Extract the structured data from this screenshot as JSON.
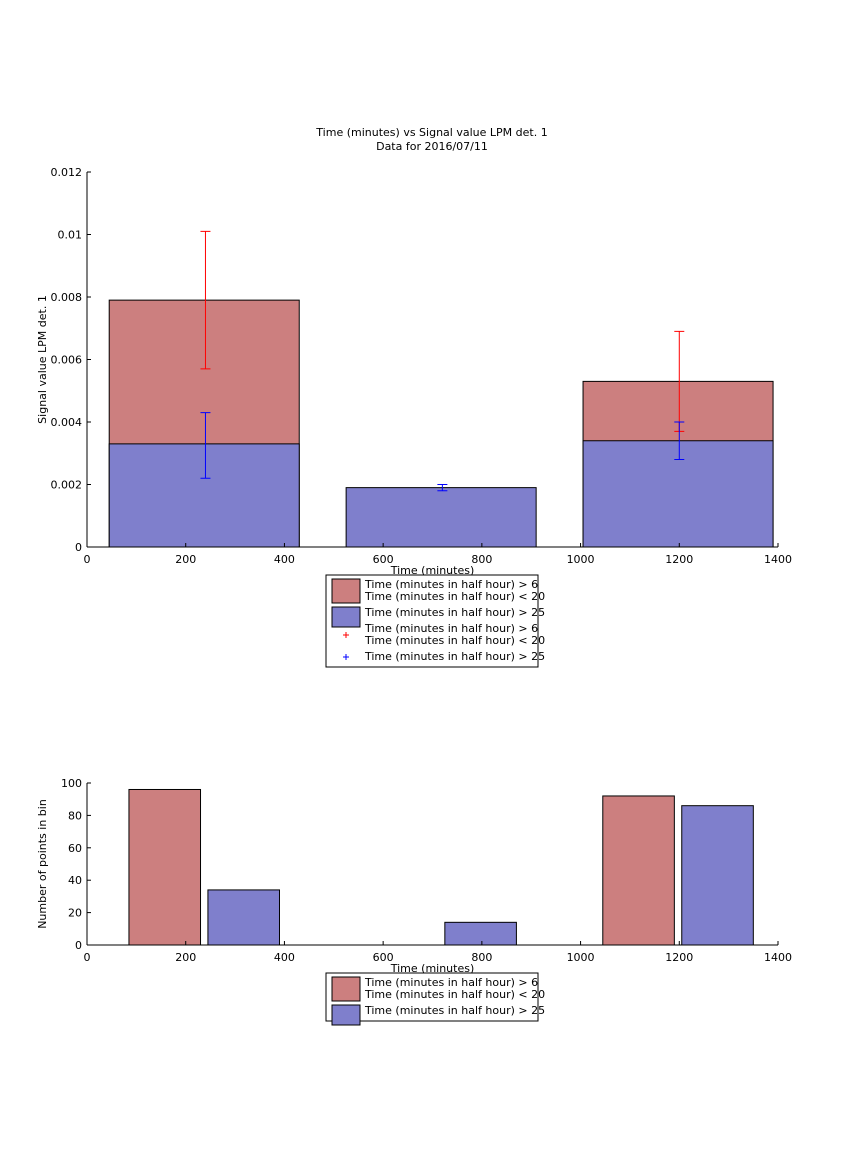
{
  "chart_data": [
    {
      "type": "bar",
      "title": "Time (minutes) vs Signal value LPM det. 1",
      "subtitle": "Data for 2016/07/11",
      "xlabel": "Time (minutes)",
      "ylabel": "Signal value LPM det. 1",
      "xlim": [
        0,
        1400
      ],
      "ylim": [
        0,
        0.012
      ],
      "xticks": [
        0,
        200,
        400,
        600,
        800,
        1000,
        1200,
        1400
      ],
      "xtick_labels": [
        "0",
        "200",
        "400",
        "600",
        "800",
        "1000",
        "1200",
        "1400"
      ],
      "yticks": [
        0,
        0.002,
        0.004,
        0.006,
        0.008,
        0.01,
        0.012
      ],
      "ytick_labels": [
        "0",
        "0.002",
        "0.004",
        "0.006",
        "0.008",
        "0.01",
        "0.012"
      ],
      "legend_position": "below",
      "bars": [
        {
          "series": 0,
          "x0": 45,
          "x1": 430,
          "value": 0.0079
        },
        {
          "series": 0,
          "x0": 1005,
          "x1": 1390,
          "value": 0.0053
        },
        {
          "series": 1,
          "x0": 45,
          "x1": 430,
          "value": 0.0033
        },
        {
          "series": 1,
          "x0": 525,
          "x1": 910,
          "value": 0.0019
        },
        {
          "series": 1,
          "x0": 1005,
          "x1": 1390,
          "value": 0.0034
        }
      ],
      "errorbars": [
        {
          "series": 0,
          "x": 240,
          "y": 0.0079,
          "low": 0.0057,
          "high": 0.0101
        },
        {
          "series": 0,
          "x": 1200,
          "y": 0.0053,
          "low": 0.0037,
          "high": 0.0069
        },
        {
          "series": 1,
          "x": 240,
          "y": 0.0033,
          "low": 0.0022,
          "high": 0.0043
        },
        {
          "series": 1,
          "x": 720,
          "y": 0.0019,
          "low": 0.0018,
          "high": 0.002
        },
        {
          "series": 1,
          "x": 1200,
          "y": 0.0034,
          "low": 0.0028,
          "high": 0.004
        }
      ],
      "legend": [
        {
          "kind": "patch",
          "color": "#cc7f7f",
          "lines": [
            "Time (minutes in half hour) > 6",
            "Time (minutes in half hour) < 20"
          ]
        },
        {
          "kind": "patch",
          "color": "#7f7fcc",
          "lines": [
            "Time (minutes in half hour) > 25"
          ]
        },
        {
          "kind": "marker",
          "color": "#ff0000",
          "lines": [
            "Time (minutes in half hour) > 6",
            "Time (minutes in half hour) < 20"
          ]
        },
        {
          "kind": "marker",
          "color": "#0000ff",
          "lines": [
            "Time (minutes in half hour) > 25"
          ]
        }
      ],
      "series": [
        {
          "name": "Time (minutes in half hour) > 6 Time (minutes in half hour) < 20",
          "color": "#cc7f7f",
          "error_color": "#ff0000"
        },
        {
          "name": "Time (minutes in half hour) > 25",
          "color": "#7f7fcc",
          "error_color": "#0000ff"
        }
      ]
    },
    {
      "type": "bar",
      "title": "",
      "xlabel": "Time (minutes)",
      "ylabel": "Number of points in bin",
      "xlim": [
        0,
        1400
      ],
      "ylim": [
        0,
        100
      ],
      "xticks": [
        0,
        200,
        400,
        600,
        800,
        1000,
        1200,
        1400
      ],
      "xtick_labels": [
        "0",
        "200",
        "400",
        "600",
        "800",
        "1000",
        "1200",
        "1400"
      ],
      "yticks": [
        0,
        20,
        40,
        60,
        80,
        100
      ],
      "ytick_labels": [
        "0",
        "20",
        "40",
        "60",
        "80",
        "100"
      ],
      "legend_position": "below",
      "bars": [
        {
          "series": 0,
          "x0": 85,
          "x1": 230,
          "value": 96
        },
        {
          "series": 1,
          "x0": 245,
          "x1": 390,
          "value": 34
        },
        {
          "series": 1,
          "x0": 725,
          "x1": 870,
          "value": 14
        },
        {
          "series": 0,
          "x0": 1045,
          "x1": 1190,
          "value": 92
        },
        {
          "series": 1,
          "x0": 1205,
          "x1": 1350,
          "value": 86
        }
      ],
      "legend": [
        {
          "kind": "patch",
          "color": "#cc7f7f",
          "lines": [
            "Time (minutes in half hour) > 6",
            "Time (minutes in half hour) < 20"
          ]
        },
        {
          "kind": "patch",
          "color": "#7f7fcc",
          "lines": [
            "Time (minutes in half hour) > 25"
          ]
        }
      ],
      "series": [
        {
          "name": "Time (minutes in half hour) > 6 Time (minutes in half hour) < 20",
          "color": "#cc7f7f"
        },
        {
          "name": "Time (minutes in half hour) > 25",
          "color": "#7f7fcc"
        }
      ]
    }
  ]
}
